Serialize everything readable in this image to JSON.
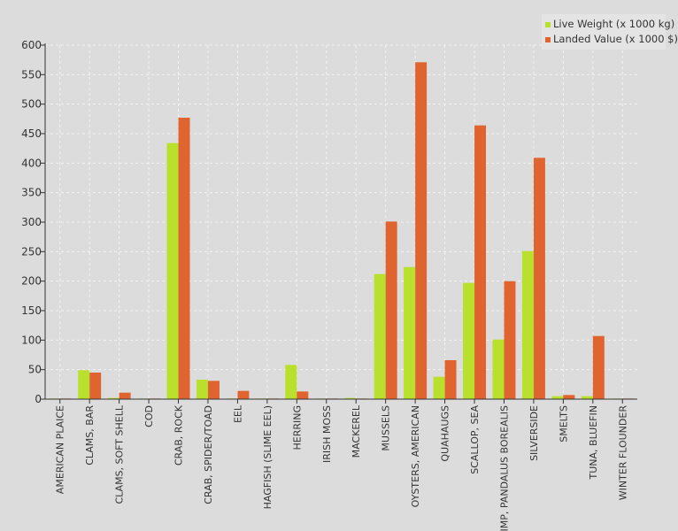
{
  "chart_data": {
    "type": "bar",
    "title": "",
    "xlabel": "",
    "ylabel": "",
    "ylim": [
      0,
      600
    ],
    "yticks": [
      0,
      50,
      100,
      150,
      200,
      250,
      300,
      350,
      400,
      450,
      500,
      550,
      600
    ],
    "grid": true,
    "legend_position": "top-right",
    "categories": [
      "AMERICAN PLAICE",
      "CLAMS, BAR",
      "CLAMS, SOFT SHELL",
      "COD",
      "CRAB, ROCK",
      "CRAB, SPIDER/TOAD",
      "EEL",
      "HAGFISH (SLIME EEL)",
      "HERRING",
      "IRISH MOSS",
      "MACKEREL",
      "MUSSELS",
      "OYSTERS, AMERICAN",
      "QUAHAUGS",
      "SCALLOP, SEA",
      "SHRIMP, PANDALUS BOREALIS",
      "SILVERSIDE",
      "SMELTS",
      "TUNA, BLUEFIN",
      "WINTER FLOUNDER"
    ],
    "series": [
      {
        "name": "Live Weight (x 1000 kg)",
        "color": "#b8e02c",
        "values": [
          1,
          49,
          2,
          1,
          434,
          33,
          1,
          1,
          58,
          1,
          2,
          212,
          224,
          38,
          197,
          101,
          251,
          5,
          5,
          1
        ]
      },
      {
        "name": "Landed Value (x 1000 $)",
        "color": "#e06430",
        "values": [
          1,
          45,
          11,
          1,
          477,
          31,
          14,
          1,
          13,
          1,
          1,
          301,
          571,
          66,
          464,
          200,
          409,
          7,
          107,
          1
        ]
      }
    ]
  }
}
